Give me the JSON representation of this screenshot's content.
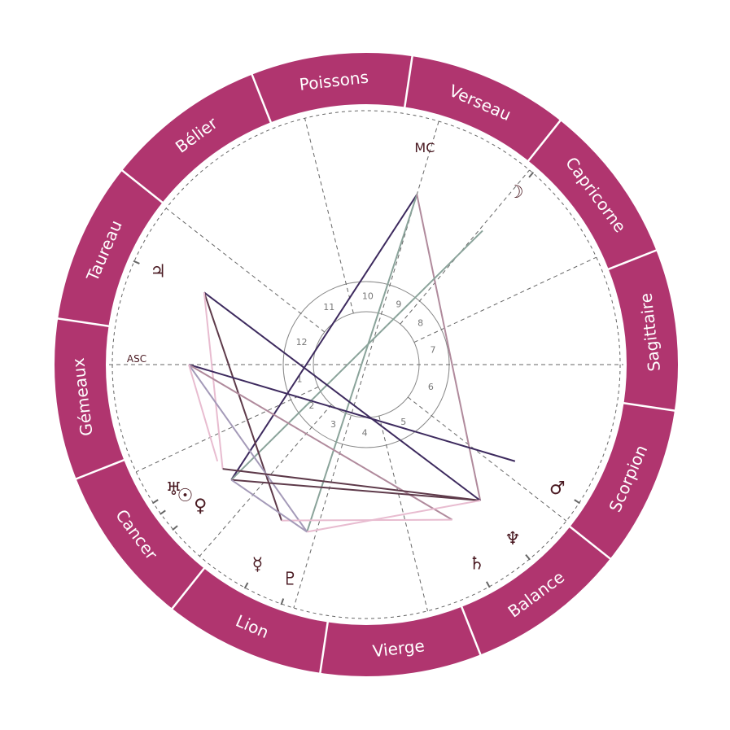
{
  "colors": {
    "ring": "#b0356f",
    "ring_separator": "#ffffff",
    "glyph": "#4a1a22",
    "dash": "#666666",
    "house_ring": "#888888"
  },
  "signs": [
    {
      "name": "Bélier"
    },
    {
      "name": "Taureau"
    },
    {
      "name": "Gémeaux"
    },
    {
      "name": "Cancer"
    },
    {
      "name": "Lion"
    },
    {
      "name": "Vierge"
    },
    {
      "name": "Balance"
    },
    {
      "name": "Scorpion"
    },
    {
      "name": "Sagittaire"
    },
    {
      "name": "Capricorne"
    },
    {
      "name": "Verseau"
    },
    {
      "name": "Poissons"
    }
  ],
  "angles": {
    "asc": {
      "label": "ASC",
      "longitude": 68.5
    },
    "mc": {
      "label": "MC",
      "longitude": 321.9
    }
  },
  "houses": [
    {
      "number": "1",
      "cusp": 68.5
    },
    {
      "number": "2",
      "cusp": 93.5
    },
    {
      "number": "3",
      "cusp": 117.5
    },
    {
      "number": "4",
      "cusp": 141.9
    },
    {
      "number": "5",
      "cusp": 172.5
    },
    {
      "number": "6",
      "cusp": 210.5
    },
    {
      "number": "7",
      "cusp": 248.5
    },
    {
      "number": "8",
      "cusp": 273.5
    },
    {
      "number": "9",
      "cusp": 298.5
    },
    {
      "number": "10",
      "cusp": 321.9
    },
    {
      "number": "11",
      "cusp": 352.5
    },
    {
      "number": "12",
      "cusp": 30.5
    }
  ],
  "planets": [
    {
      "id": "moon",
      "glyph": "☽",
      "longitude": 297.5
    },
    {
      "id": "jupiter",
      "glyph": "♃",
      "longitude": 44.5
    },
    {
      "id": "mars",
      "glyph": "♂",
      "longitude": 215.5
    },
    {
      "id": "neptune",
      "glyph": "♆",
      "longitude": 198.5
    },
    {
      "id": "saturn",
      "glyph": "♄",
      "longitude": 187.5
    },
    {
      "id": "pluto",
      "glyph": "♇",
      "longitude": 139
    },
    {
      "id": "mercury",
      "glyph": "☿",
      "longitude": 130
    },
    {
      "id": "venus",
      "glyph": "♀",
      "longitude": 109
    },
    {
      "id": "sun",
      "glyph": "☉",
      "longitude": 104.5
    },
    {
      "id": "uranus",
      "glyph": "♅",
      "longitude": 101.5
    }
  ],
  "aspects": [
    {
      "from": "mc",
      "to": "venus",
      "color": "#3d2a5e"
    },
    {
      "from": "mc",
      "to": "pluto",
      "color": "#8aa39a"
    },
    {
      "from": "mc",
      "to": "neptune",
      "color": "#b08a9c"
    },
    {
      "from": "moon",
      "to": "venus",
      "color": "#8aa39a"
    },
    {
      "from": "jupiter",
      "to": "neptune",
      "color": "#3d2a5e"
    },
    {
      "from": "jupiter",
      "to": "mercury",
      "color": "#5e3a4a"
    },
    {
      "from": "jupiter",
      "to": "sun",
      "color": "#e8bcd0"
    },
    {
      "from": "asc",
      "to": "mars",
      "color": "#3d2a5e"
    },
    {
      "from": "asc",
      "to": "saturn",
      "color": "#b08a9c"
    },
    {
      "from": "asc",
      "to": "pluto",
      "color": "#a49ab8"
    },
    {
      "from": "asc",
      "to": "uranus",
      "color": "#e8bcd0"
    },
    {
      "from": "venus",
      "to": "neptune",
      "color": "#5e3a4a"
    },
    {
      "from": "sun",
      "to": "neptune",
      "color": "#5e3a4a"
    },
    {
      "from": "mercury",
      "to": "saturn",
      "color": "#e8bcd0"
    },
    {
      "from": "pluto",
      "to": "neptune",
      "color": "#e8bcd0"
    },
    {
      "from": "venus",
      "to": "pluto",
      "color": "#a49ab8"
    }
  ]
}
